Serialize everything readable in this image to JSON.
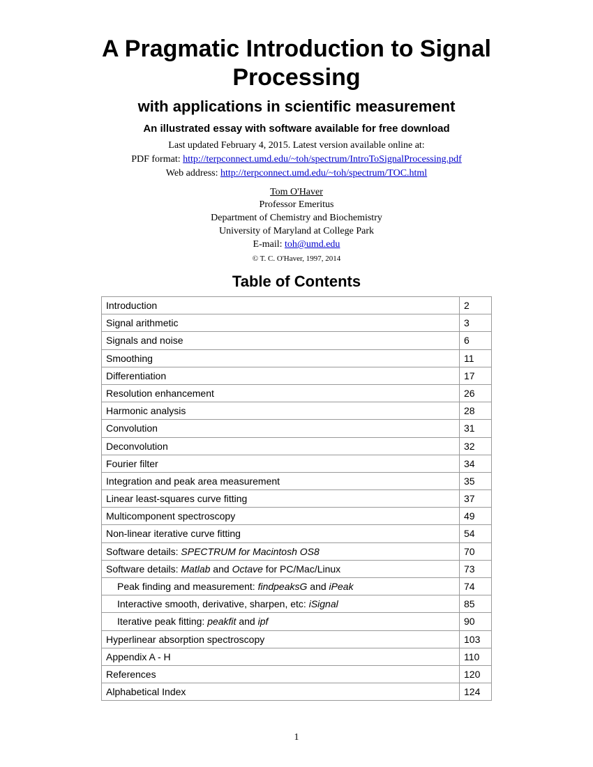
{
  "title": "A Pragmatic Introduction to Signal Processing",
  "subtitle": "with applications in scientific measurement",
  "subsubtitle": "An illustrated essay with software available for free download",
  "updated_line": "Last updated February 4, 2015. Latest version available online at:",
  "pdf_label": "PDF format: ",
  "pdf_link": "http://terpconnect.umd.edu/~toh/spectrum/IntroToSignalProcessing.pdf",
  "web_label": "Web address: ",
  "web_link": "http://terpconnect.umd.edu/~toh/spectrum/TOC.html",
  "author": {
    "name": "Tom O'Haver",
    "title": "Professor Emeritus",
    "dept": "Department of Chemistry and Biochemistry",
    "univ": "University of Maryland at College Park",
    "email_label": "E-mail: ",
    "email": "toh@umd.edu"
  },
  "copyright": "© T. C. O'Haver, 1997, 2014",
  "toc_title": "Table of Contents",
  "toc": [
    {
      "html": "Introduction",
      "page": "2"
    },
    {
      "html": "Signal arithmetic",
      "page": "3"
    },
    {
      "html": "Signals and noise",
      "page": "6"
    },
    {
      "html": "Smoothing",
      "page": "11"
    },
    {
      "html": "Differentiation",
      "page": "17"
    },
    {
      "html": "Resolution enhancement",
      "page": "26"
    },
    {
      "html": "Harmonic analysis",
      "page": "28"
    },
    {
      "html": "Convolution",
      "page": "31"
    },
    {
      "html": "Deconvolution",
      "page": "32"
    },
    {
      "html": "Fourier filter",
      "page": "34"
    },
    {
      "html": "Integration and peak area measurement",
      "page": "35"
    },
    {
      "html": "Linear least-squares curve fitting",
      "page": "37"
    },
    {
      "html": "Multicomponent spectroscopy",
      "page": "49"
    },
    {
      "html": "Non-linear iterative curve fitting",
      "page": "54"
    },
    {
      "html": "Software details: <span class=\"italic\">SPECTRUM for Macintosh OS8</span>",
      "page": "70"
    },
    {
      "html": "Software details: <span class=\"italic\">Matlab</span> and <span class=\"italic\">Octave</span> for PC/Mac/Linux",
      "page": "73"
    },
    {
      "html": "Peak finding and measurement: <span class=\"italic\">findpeaksG</span> and <span class=\"italic\">iPeak</span>",
      "page": "74",
      "indent": true
    },
    {
      "html": "Interactive smooth, derivative, sharpen, etc: <span class=\"italic\">iSignal</span>",
      "page": "85",
      "indent": true
    },
    {
      "html": "Iterative peak fitting: <span class=\"italic\">peakfit</span> and <span class=\"italic\">ipf</span>",
      "page": "90",
      "indent": true
    },
    {
      "html": "Hyperlinear absorption spectroscopy",
      "page": "103"
    },
    {
      "html": "Appendix A - H",
      "page": "110"
    },
    {
      "html": "References",
      "page": "120"
    },
    {
      "html": "Alphabetical Index",
      "page": "124"
    }
  ],
  "page_number": "1",
  "colors": {
    "text": "#000000",
    "link": "#0000cc",
    "border": "#999999",
    "background": "#ffffff"
  },
  "fonts": {
    "body": "Times New Roman",
    "headings_table": "Arial"
  }
}
